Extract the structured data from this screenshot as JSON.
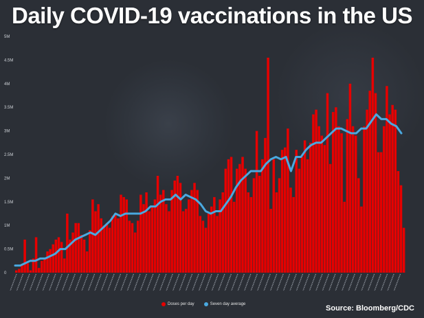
{
  "title": "Daily COVID-19 vaccinations in the US",
  "source": "Source: Bloomberg/CDC",
  "legend": {
    "bars_label": "Doses per day",
    "line_label": "Seven day average"
  },
  "colors": {
    "bar": "#e60000",
    "line": "#4aa9e0",
    "background": "#2b2f36",
    "axis_text": "#cfd3d8"
  },
  "chart_data": {
    "type": "bar",
    "title": "Daily COVID-19 vaccinations in the US",
    "ylim": [
      0,
      5000000
    ],
    "yticks": [
      0,
      500000,
      1000000,
      1500000,
      2000000,
      2500000,
      3000000,
      3500000,
      4000000,
      4500000,
      5000000
    ],
    "ytick_labels": [
      "0",
      "0.5M",
      "1M",
      "1.5M",
      "2M",
      "2.5M",
      "3M",
      "3.5M",
      "4M",
      "4.5M",
      "5M"
    ],
    "series": [
      {
        "name": "Doses per day",
        "type": "bar",
        "values": [
          50000,
          80000,
          150000,
          700000,
          200000,
          50000,
          300000,
          750000,
          100000,
          250000,
          300000,
          450000,
          500000,
          600000,
          700000,
          750000,
          650000,
          300000,
          1250000,
          700000,
          850000,
          1050000,
          1050000,
          800000,
          700000,
          450000,
          900000,
          1550000,
          1300000,
          1450000,
          1150000,
          1000000,
          1050000,
          950000,
          1200000,
          1250000,
          1150000,
          1650000,
          1600000,
          1550000,
          1100000,
          1050000,
          850000,
          1100000,
          1650000,
          1450000,
          1700000,
          1300000,
          1400000,
          1550000,
          2050000,
          1650000,
          1750000,
          1450000,
          1300000,
          1750000,
          1950000,
          2050000,
          1900000,
          1300000,
          1350000,
          1550000,
          1750000,
          1900000,
          1750000,
          1200000,
          1100000,
          950000,
          1250000,
          1400000,
          1600000,
          1200000,
          1550000,
          1700000,
          2200000,
          2400000,
          2450000,
          1500000,
          2200000,
          2300000,
          2450000,
          2200000,
          1700000,
          1600000,
          2000000,
          3000000,
          2050000,
          2400000,
          2850000,
          4550000,
          1350000,
          2400000,
          1700000,
          2000000,
          2600000,
          2650000,
          3050000,
          1800000,
          1600000,
          2600000,
          2200000,
          2450000,
          2800000,
          2400000,
          2750000,
          3350000,
          3450000,
          3100000,
          2900000,
          2700000,
          3800000,
          2300000,
          3400000,
          3500000,
          3100000,
          2950000,
          1500000,
          3250000,
          4000000,
          3100000,
          2900000,
          2000000,
          1400000,
          3100000,
          3450000,
          3850000,
          4550000,
          3800000,
          2550000,
          2550000,
          3100000,
          3950000,
          3350000,
          3550000,
          3450000,
          2150000,
          1850000,
          950000
        ],
        "color": "#e60000"
      },
      {
        "name": "Seven day average",
        "type": "line",
        "values": [
          150000,
          150000,
          200000,
          250000,
          250000,
          300000,
          300000,
          350000,
          400000,
          500000,
          500000,
          600000,
          700000,
          750000,
          800000,
          850000,
          800000,
          900000,
          1000000,
          1100000,
          1250000,
          1200000,
          1250000,
          1250000,
          1250000,
          1250000,
          1300000,
          1400000,
          1400000,
          1500000,
          1550000,
          1550000,
          1650000,
          1550000,
          1650000,
          1600000,
          1550000,
          1450000,
          1300000,
          1250000,
          1300000,
          1300000,
          1450000,
          1600000,
          1800000,
          1950000,
          2050000,
          2150000,
          2150000,
          2150000,
          2300000,
          2400000,
          2450000,
          2400000,
          2450000,
          2150000,
          2450000,
          2450000,
          2600000,
          2700000,
          2750000,
          2750000,
          2850000,
          2950000,
          3050000,
          3050000,
          3000000,
          2950000,
          2950000,
          3050000,
          3050000,
          3200000,
          3350000,
          3250000,
          3250000,
          3150000,
          3100000,
          2950000
        ],
        "color": "#4aa9e0"
      }
    ],
    "x_range": [
      "12/14/2020",
      "5/2021"
    ],
    "grid": false,
    "legend_position": "bottom-center"
  }
}
